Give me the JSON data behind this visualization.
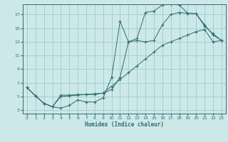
{
  "xlabel": "Humidex (Indice chaleur)",
  "bg_color": "#cce8e8",
  "grid_color": "#99cccc",
  "line_color": "#2e6e6e",
  "xlim": [
    -0.5,
    23.5
  ],
  "ylim": [
    2.5,
    18.5
  ],
  "xticks": [
    0,
    1,
    2,
    3,
    4,
    5,
    6,
    7,
    8,
    9,
    10,
    11,
    12,
    13,
    14,
    15,
    16,
    17,
    18,
    19,
    20,
    21,
    22,
    23
  ],
  "yticks": [
    3,
    5,
    7,
    9,
    11,
    13,
    15,
    17
  ],
  "curve1_x": [
    0,
    1,
    2,
    3,
    4,
    5,
    6,
    7,
    8,
    9,
    10,
    11,
    12,
    13,
    14,
    15,
    16,
    17,
    18,
    19,
    20,
    21,
    22,
    23
  ],
  "curve1_y": [
    6.3,
    5.1,
    4.0,
    3.5,
    3.3,
    3.7,
    4.5,
    4.2,
    4.2,
    4.8,
    7.8,
    16.0,
    13.0,
    13.5,
    17.3,
    17.5,
    18.4,
    18.5,
    18.4,
    17.2,
    17.1,
    15.3,
    14.2,
    13.2
  ],
  "curve2_x": [
    0,
    1,
    2,
    3,
    4,
    5,
    6,
    7,
    8,
    9,
    10,
    11,
    12,
    13,
    14,
    15,
    16,
    17,
    18,
    19,
    20,
    21,
    22,
    23
  ],
  "curve2_y": [
    6.3,
    5.1,
    4.0,
    3.5,
    5.2,
    5.2,
    5.3,
    5.3,
    5.3,
    5.5,
    6.0,
    7.8,
    13.0,
    13.2,
    13.0,
    13.2,
    15.5,
    17.0,
    17.3,
    17.2,
    17.1,
    15.5,
    14.0,
    13.2
  ],
  "curve3_x": [
    0,
    1,
    2,
    3,
    4,
    5,
    6,
    7,
    8,
    9,
    10,
    11,
    12,
    13,
    14,
    15,
    16,
    17,
    18,
    19,
    20,
    21,
    22,
    23
  ],
  "curve3_y": [
    6.3,
    5.1,
    4.0,
    3.5,
    5.0,
    5.1,
    5.2,
    5.3,
    5.4,
    5.5,
    6.5,
    7.5,
    8.5,
    9.5,
    10.5,
    11.5,
    12.5,
    13.0,
    13.5,
    14.0,
    14.5,
    14.8,
    13.0,
    13.2
  ]
}
